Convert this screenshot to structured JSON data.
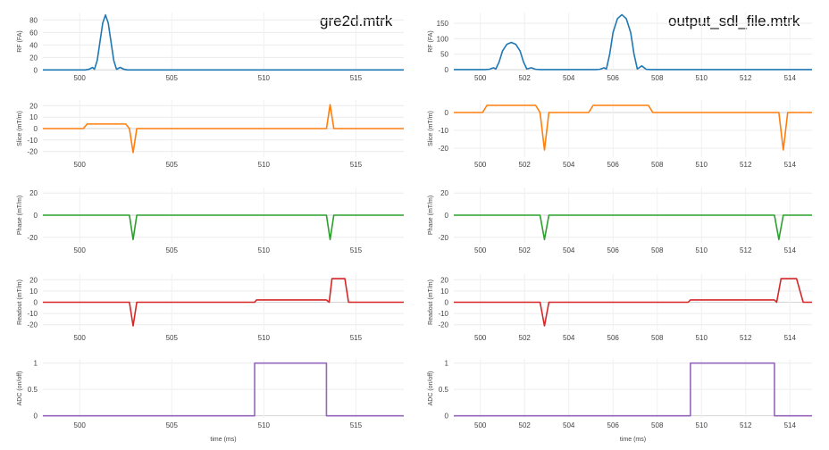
{
  "panels": [
    {
      "title": "gre2d.mtrk",
      "xlabel": "time (ms)",
      "xlim": [
        498,
        517.6
      ],
      "xticks": [
        500,
        505,
        510,
        515
      ],
      "chart_data": [
        {
          "type": "line",
          "ylabel": "RF (FA)",
          "ylim": [
            -1,
            92
          ],
          "yticks": [
            0,
            20,
            40,
            60,
            80
          ],
          "color": "#1f77b4",
          "x": [
            498,
            500.3,
            500.5,
            500.7,
            500.8,
            500.95,
            501.1,
            501.25,
            501.4,
            501.55,
            501.7,
            501.85,
            502.0,
            502.2,
            502.4,
            502.6,
            517.6
          ],
          "y": [
            0,
            0,
            1,
            4,
            1,
            15,
            45,
            75,
            88,
            75,
            45,
            15,
            1,
            4,
            1,
            0,
            0
          ]
        },
        {
          "type": "line",
          "ylabel": "Slice (mT/m)",
          "ylim": [
            -25,
            25
          ],
          "yticks": [
            -20,
            -10,
            0,
            10,
            20
          ],
          "color": "#ff7f0e",
          "x": [
            498,
            500.2,
            500.4,
            502.5,
            502.7,
            502.9,
            503.1,
            503.3,
            513.4,
            513.6,
            513.8,
            514.0,
            517.6
          ],
          "y": [
            0,
            0,
            4,
            4,
            0,
            -21,
            0,
            0,
            0,
            21,
            0,
            0,
            0
          ]
        },
        {
          "type": "line",
          "ylabel": "Phase (mT/m)",
          "ylim": [
            -25,
            25
          ],
          "yticks": [
            -20,
            0,
            20
          ],
          "color": "#2ca02c",
          "x": [
            498,
            502.7,
            502.9,
            503.1,
            513.4,
            513.6,
            513.8,
            517.6
          ],
          "y": [
            0,
            0,
            -22,
            0,
            0,
            -22,
            0,
            0
          ]
        },
        {
          "type": "line",
          "ylabel": "Readout (mT/m)",
          "ylim": [
            -25,
            25
          ],
          "yticks": [
            -20,
            -10,
            0,
            10,
            20
          ],
          "color": "#d62728",
          "x": [
            498,
            502.7,
            502.9,
            503.1,
            509.5,
            509.6,
            513.4,
            513.55,
            513.7,
            514.4,
            514.6,
            517.6
          ],
          "y": [
            0,
            0,
            -21,
            0,
            0,
            2,
            2,
            0,
            21,
            21,
            0,
            0
          ]
        },
        {
          "type": "line",
          "ylabel": "ADC (on/off)",
          "ylim": [
            -0.04,
            1.08
          ],
          "yticks": [
            0,
            0.5,
            1
          ],
          "color": "#9467bd",
          "x": [
            498,
            509.5,
            509.5,
            513.4,
            513.4,
            517.6
          ],
          "y": [
            0,
            0,
            1,
            1,
            0,
            0
          ]
        }
      ]
    },
    {
      "title": "output_sdl_file.mtrk",
      "xlabel": "time (ms)",
      "xlim": [
        498.8,
        515
      ],
      "xticks": [
        500,
        502,
        504,
        506,
        508,
        510,
        512,
        514
      ],
      "chart_data": [
        {
          "type": "line",
          "ylabel": "RF (FA)",
          "ylim": [
            -3,
            185
          ],
          "yticks": [
            0,
            50,
            100,
            150
          ],
          "color": "#1f77b4",
          "x": [
            498.8,
            500.2,
            500.4,
            500.6,
            500.7,
            500.85,
            501.0,
            501.2,
            501.4,
            501.6,
            501.8,
            501.95,
            502.1,
            502.3,
            502.5,
            502.7,
            505.2,
            505.4,
            505.6,
            505.7,
            505.85,
            506.0,
            506.2,
            506.4,
            506.6,
            506.8,
            506.95,
            507.1,
            507.3,
            507.5,
            507.7,
            515
          ],
          "y": [
            0,
            0,
            1,
            6,
            2,
            25,
            60,
            82,
            88,
            82,
            60,
            25,
            2,
            6,
            1,
            0,
            0,
            1,
            6,
            2,
            50,
            120,
            165,
            178,
            165,
            120,
            50,
            2,
            12,
            1,
            0,
            0
          ]
        },
        {
          "type": "line",
          "ylabel": "Slice (mT/m)",
          "ylim": [
            -25,
            7
          ],
          "yticks": [
            -20,
            -10,
            0
          ],
          "color": "#ff7f0e",
          "x": [
            498.8,
            500.1,
            500.3,
            502.5,
            502.7,
            502.9,
            503.1,
            503.3,
            504.9,
            505.1,
            507.6,
            507.8,
            513.3,
            513.5,
            513.7,
            513.9,
            515
          ],
          "y": [
            0,
            0,
            4,
            4,
            0,
            -21,
            0,
            0,
            0,
            4,
            4,
            0,
            0,
            0,
            -21,
            0,
            0
          ]
        },
        {
          "type": "line",
          "ylabel": "Phase (mT/m)",
          "ylim": [
            -25,
            25
          ],
          "yticks": [
            -20,
            0,
            20
          ],
          "color": "#2ca02c",
          "x": [
            498.8,
            502.7,
            502.9,
            503.1,
            513.3,
            513.5,
            513.7,
            515
          ],
          "y": [
            0,
            0,
            -22,
            0,
            0,
            -22,
            0,
            0
          ]
        },
        {
          "type": "line",
          "ylabel": "Readout (mT/m)",
          "ylim": [
            -25,
            25
          ],
          "yticks": [
            -20,
            -10,
            0,
            10,
            20
          ],
          "color": "#d62728",
          "x": [
            498.8,
            502.7,
            502.9,
            503.1,
            509.4,
            509.5,
            513.3,
            513.4,
            513.6,
            514.3,
            514.6,
            515
          ],
          "y": [
            0,
            0,
            -21,
            0,
            0,
            2,
            2,
            0,
            21,
            21,
            0,
            0
          ]
        },
        {
          "type": "line",
          "ylabel": "ADC (on/off)",
          "ylim": [
            -0.04,
            1.08
          ],
          "yticks": [
            0,
            0.5,
            1
          ],
          "color": "#9467bd",
          "x": [
            498.8,
            509.5,
            509.5,
            513.3,
            513.3,
            515
          ],
          "y": [
            0,
            0,
            1,
            1,
            0,
            0
          ]
        }
      ]
    }
  ]
}
